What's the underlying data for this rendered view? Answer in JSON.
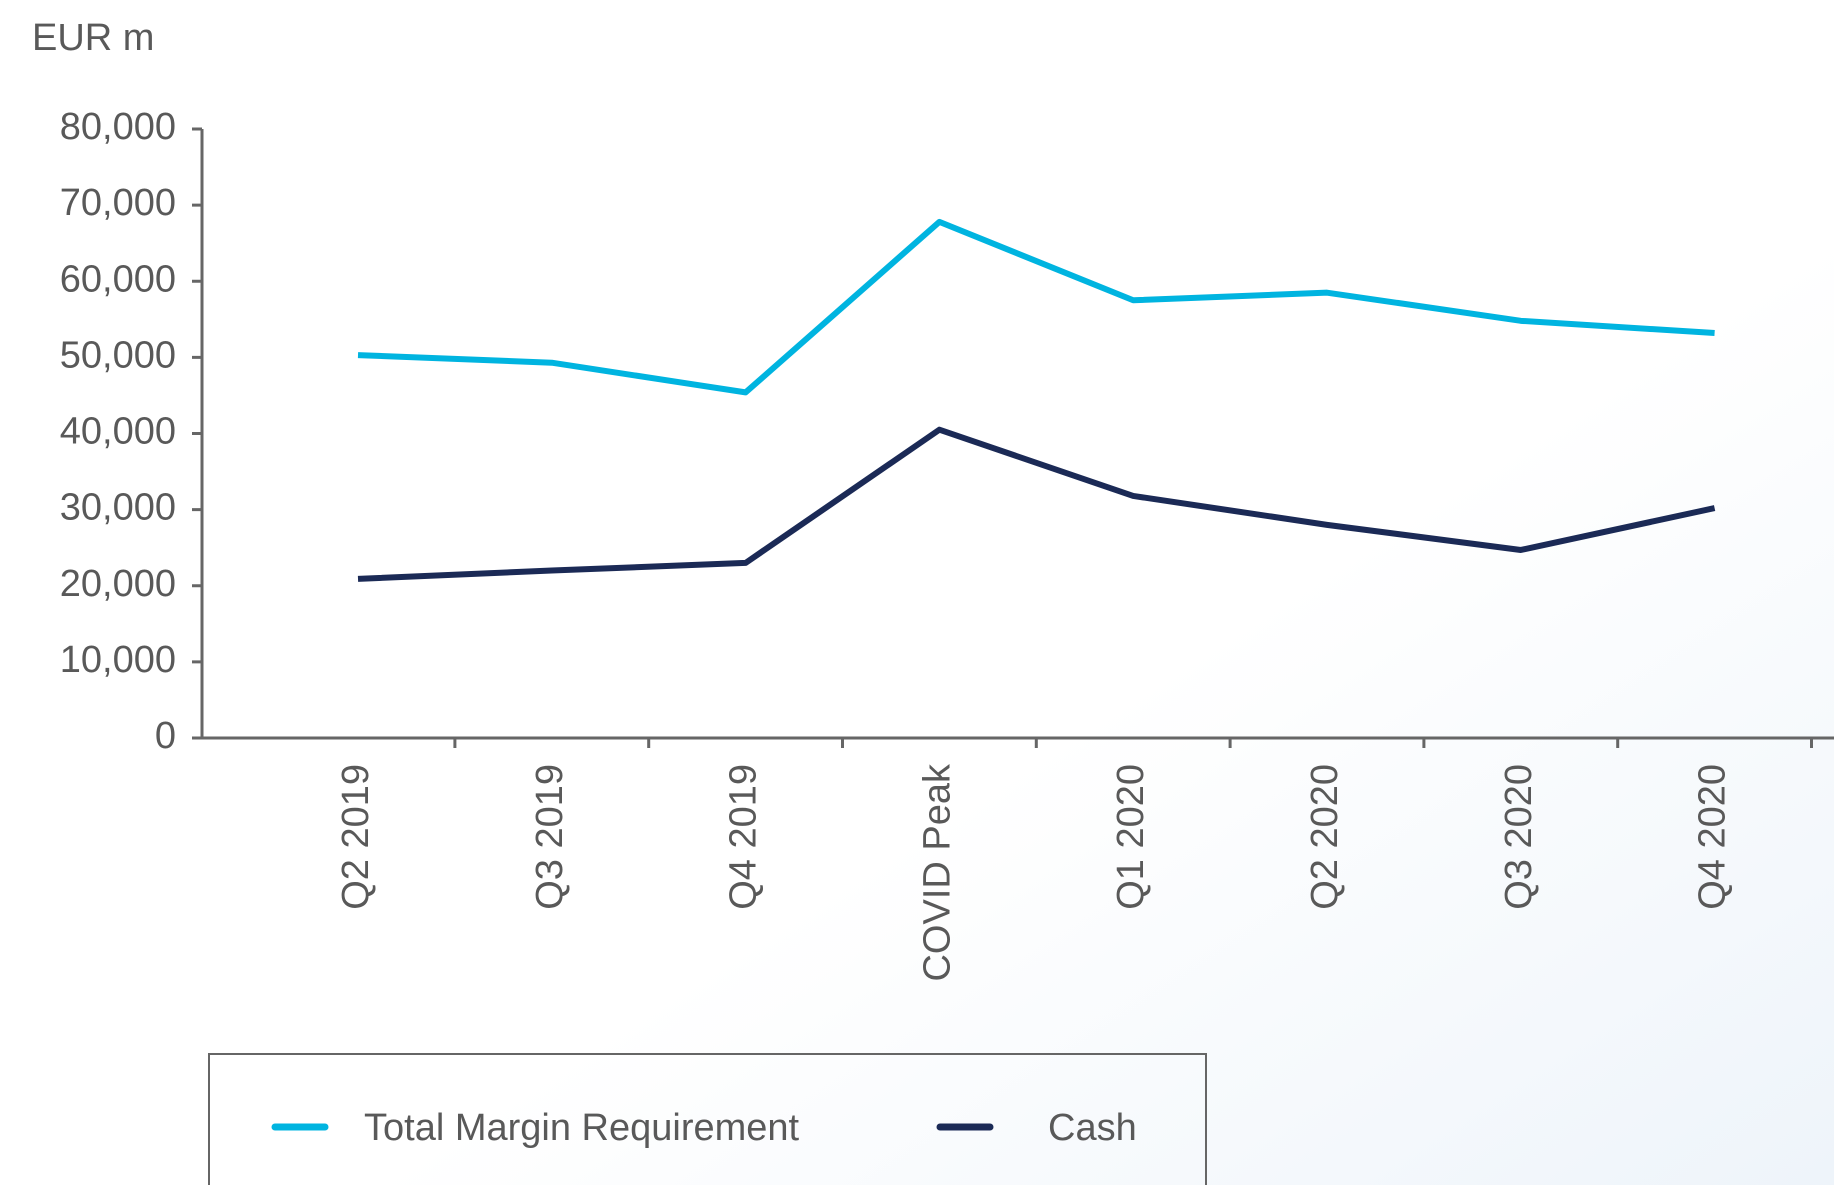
{
  "chart_data": {
    "type": "line",
    "y_axis_label": "EUR m",
    "categories": [
      "Q2 2019",
      "Q3 2019",
      "Q4 2019",
      "COVID Peak",
      "Q1 2020",
      "Q2 2020",
      "Q3 2020",
      "Q4 2020"
    ],
    "series": [
      {
        "name": "Total Margin Requirement",
        "color": "#00b4e0",
        "values": [
          50300,
          49300,
          45400,
          67800,
          57500,
          58500,
          54800,
          53200
        ]
      },
      {
        "name": "Cash",
        "color": "#1b2a56",
        "values": [
          20900,
          22000,
          23000,
          40500,
          31800,
          28000,
          24700,
          30200
        ]
      }
    ],
    "ylim": [
      0,
      80000
    ],
    "yticks": [
      0,
      {
        "value": 10000,
        "label": "10,000"
      },
      {
        "value": 20000,
        "label": "20,000"
      },
      {
        "value": 30000,
        "label": "30,000"
      },
      {
        "value": 40000,
        "label": "40,000"
      },
      {
        "value": 50000,
        "label": "50,000"
      },
      {
        "value": 60000,
        "label": "60,000"
      },
      {
        "value": 70000,
        "label": "70,000"
      },
      {
        "value": 80000,
        "label": "80,000"
      }
    ],
    "legend": "bottom-left"
  }
}
